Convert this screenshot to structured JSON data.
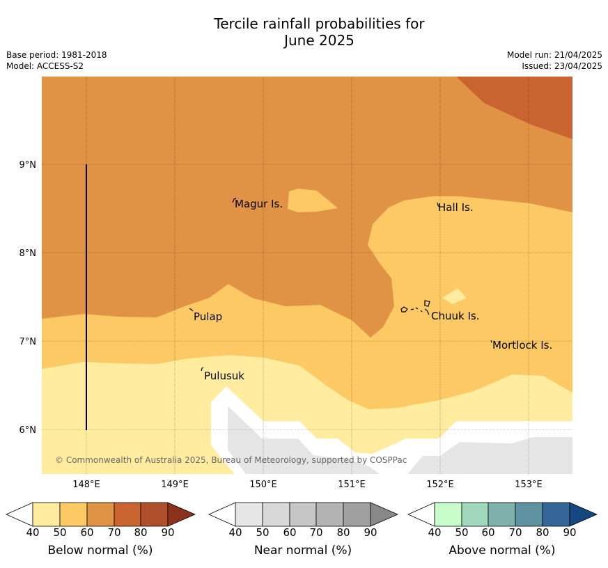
{
  "title": {
    "line1": "Tercile rainfall probabilities for",
    "line2": "June 2025"
  },
  "meta": {
    "base_period": "Base period: 1981-2018",
    "model": "Model: ACCESS-S2",
    "model_run": "Model run: 21/04/2025",
    "issued": "Issued: 23/04/2025"
  },
  "map": {
    "lon_labels": [
      "148°E",
      "149°E",
      "150°E",
      "151°E",
      "152°E",
      "153°E"
    ],
    "lat_labels": [
      "9°N",
      "8°N",
      "7°N",
      "6°N"
    ],
    "places": [
      "Magur Is.",
      "Hall Is.",
      "Pulap",
      "Chuuk Is.",
      "Mortlock Is.",
      "Pulusuk"
    ],
    "copyright": "© Commonwealth of Australia 2025, Bureau of Meteorology, supported by COSPPac"
  },
  "colorbars": [
    {
      "label": "Below normal (%)",
      "ticks": [
        "40",
        "50",
        "60",
        "70",
        "80",
        "90"
      ],
      "colors": [
        "#ffffff",
        "#ffec9f",
        "#fdc964",
        "#e09344",
        "#c96431",
        "#ae4e2a",
        "#8b321c"
      ]
    },
    {
      "label": "Near normal (%)",
      "ticks": [
        "40",
        "50",
        "60",
        "70",
        "80",
        "90"
      ],
      "colors": [
        "#ffffff",
        "#e5e5e5",
        "#d8d8d8",
        "#c6c6c6",
        "#b3b3b3",
        "#a0a0a0",
        "#888888"
      ]
    },
    {
      "label": "Above normal (%)",
      "ticks": [
        "40",
        "50",
        "60",
        "70",
        "80",
        "90"
      ],
      "colors": [
        "#ffffff",
        "#c8fcca",
        "#a1d8bd",
        "#7fb2ac",
        "#5f93a1",
        "#35669a",
        "#14487f"
      ]
    }
  ]
}
